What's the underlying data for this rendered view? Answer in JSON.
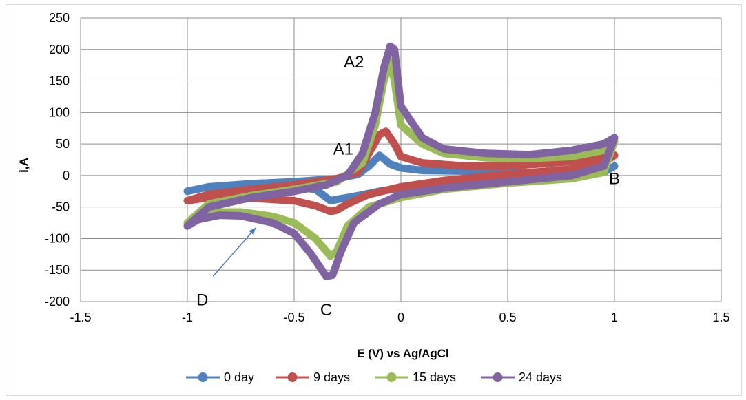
{
  "chart_data": {
    "type": "line",
    "xlabel": "E (V) vs Ag/AgCl",
    "ylabel": "i,A",
    "xlim": [
      -1.5,
      1.5
    ],
    "ylim": [
      -200,
      250
    ],
    "x_ticks": [
      -1.5,
      -1,
      -0.5,
      0,
      0.5,
      1,
      1.5
    ],
    "y_ticks": [
      -200,
      -150,
      -100,
      -50,
      0,
      50,
      100,
      150,
      200,
      250
    ],
    "grid": "both",
    "legend_position": "bottom",
    "series": [
      {
        "name": "0 day",
        "color": "#4f81bd",
        "points": [
          [
            -1,
            -25
          ],
          [
            -0.9,
            -18
          ],
          [
            -0.8,
            -17
          ],
          [
            -0.7,
            -19
          ],
          [
            -0.65,
            -25
          ],
          [
            -0.6,
            -20
          ],
          [
            -0.5,
            -18
          ],
          [
            -0.4,
            -22
          ],
          [
            -0.33,
            -40
          ],
          [
            -0.3,
            -38
          ],
          [
            -0.2,
            -32
          ],
          [
            -0.1,
            -25
          ],
          [
            0,
            -20
          ],
          [
            0.2,
            -10
          ],
          [
            0.5,
            -3
          ],
          [
            0.8,
            0
          ],
          [
            0.95,
            5
          ],
          [
            1,
            15
          ],
          [
            0.95,
            5
          ],
          [
            0.8,
            3
          ],
          [
            0.5,
            5
          ],
          [
            0.3,
            7
          ],
          [
            0.1,
            8
          ],
          [
            0,
            12
          ],
          [
            -0.05,
            18
          ],
          [
            -0.1,
            32
          ],
          [
            -0.15,
            15
          ],
          [
            -0.2,
            2
          ],
          [
            -0.3,
            -5
          ],
          [
            -0.5,
            -10
          ],
          [
            -0.7,
            -13
          ],
          [
            -0.9,
            -18
          ],
          [
            -1,
            -25
          ]
        ]
      },
      {
        "name": "9 days",
        "color": "#c0504d",
        "points": [
          [
            -1,
            -40
          ],
          [
            -0.9,
            -35
          ],
          [
            -0.8,
            -34
          ],
          [
            -0.7,
            -36
          ],
          [
            -0.6,
            -38
          ],
          [
            -0.5,
            -40
          ],
          [
            -0.4,
            -48
          ],
          [
            -0.33,
            -57
          ],
          [
            -0.3,
            -55
          ],
          [
            -0.25,
            -45
          ],
          [
            -0.15,
            -30
          ],
          [
            0,
            -18
          ],
          [
            0.2,
            -8
          ],
          [
            0.5,
            2
          ],
          [
            0.8,
            10
          ],
          [
            0.95,
            20
          ],
          [
            1,
            32
          ],
          [
            0.95,
            28
          ],
          [
            0.8,
            22
          ],
          [
            0.5,
            15
          ],
          [
            0.3,
            15
          ],
          [
            0.1,
            20
          ],
          [
            0,
            30
          ],
          [
            -0.03,
            50
          ],
          [
            -0.07,
            70
          ],
          [
            -0.1,
            65
          ],
          [
            -0.15,
            35
          ],
          [
            -0.2,
            5
          ],
          [
            -0.3,
            -5
          ],
          [
            -0.5,
            -15
          ],
          [
            -0.7,
            -22
          ],
          [
            -0.9,
            -30
          ],
          [
            -1,
            -40
          ]
        ]
      },
      {
        "name": "15 days",
        "color": "#9bbb59",
        "points": [
          [
            -1,
            -75
          ],
          [
            -0.95,
            -67
          ],
          [
            -0.85,
            -58
          ],
          [
            -0.75,
            -58
          ],
          [
            -0.6,
            -65
          ],
          [
            -0.5,
            -75
          ],
          [
            -0.4,
            -100
          ],
          [
            -0.33,
            -128
          ],
          [
            -0.3,
            -120
          ],
          [
            -0.25,
            -80
          ],
          [
            -0.15,
            -50
          ],
          [
            0,
            -35
          ],
          [
            0.2,
            -22
          ],
          [
            0.5,
            -12
          ],
          [
            0.8,
            -5
          ],
          [
            0.95,
            5
          ],
          [
            1,
            55
          ],
          [
            0.95,
            40
          ],
          [
            0.8,
            30
          ],
          [
            0.6,
            27
          ],
          [
            0.4,
            28
          ],
          [
            0.2,
            35
          ],
          [
            0.1,
            50
          ],
          [
            0,
            80
          ],
          [
            -0.03,
            150
          ],
          [
            -0.05,
            180
          ],
          [
            -0.08,
            150
          ],
          [
            -0.12,
            80
          ],
          [
            -0.18,
            20
          ],
          [
            -0.3,
            -10
          ],
          [
            -0.5,
            -22
          ],
          [
            -0.7,
            -32
          ],
          [
            -0.9,
            -45
          ],
          [
            -1,
            -75
          ]
        ]
      },
      {
        "name": "24 days",
        "color": "#8064a2",
        "points": [
          [
            -1,
            -80
          ],
          [
            -0.95,
            -70
          ],
          [
            -0.85,
            -63
          ],
          [
            -0.75,
            -64
          ],
          [
            -0.6,
            -75
          ],
          [
            -0.5,
            -92
          ],
          [
            -0.42,
            -125
          ],
          [
            -0.35,
            -160
          ],
          [
            -0.32,
            -158
          ],
          [
            -0.28,
            -120
          ],
          [
            -0.22,
            -75
          ],
          [
            -0.1,
            -45
          ],
          [
            0,
            -30
          ],
          [
            0.2,
            -20
          ],
          [
            0.5,
            -10
          ],
          [
            0.8,
            0
          ],
          [
            0.95,
            15
          ],
          [
            1,
            60
          ],
          [
            0.95,
            50
          ],
          [
            0.8,
            40
          ],
          [
            0.6,
            33
          ],
          [
            0.4,
            35
          ],
          [
            0.2,
            42
          ],
          [
            0.1,
            60
          ],
          [
            0,
            110
          ],
          [
            -0.03,
            200
          ],
          [
            -0.05,
            205
          ],
          [
            -0.08,
            170
          ],
          [
            -0.12,
            100
          ],
          [
            -0.18,
            35
          ],
          [
            -0.25,
            0
          ],
          [
            -0.35,
            -15
          ],
          [
            -0.5,
            -25
          ],
          [
            -0.7,
            -35
          ],
          [
            -0.9,
            -50
          ],
          [
            -1,
            -80
          ]
        ]
      }
    ],
    "annotations": [
      {
        "text": "A2",
        "x": -0.22,
        "y": 180
      },
      {
        "text": "A1",
        "x": -0.27,
        "y": 42
      },
      {
        "text": "B",
        "x": 1.0,
        "y": -5
      },
      {
        "text": "C",
        "x": -0.35,
        "y": -213
      },
      {
        "text": "D",
        "x": -0.93,
        "y": -197
      }
    ],
    "arrow": {
      "from": [
        -0.88,
        -160
      ],
      "to": [
        -0.68,
        -83
      ]
    }
  }
}
